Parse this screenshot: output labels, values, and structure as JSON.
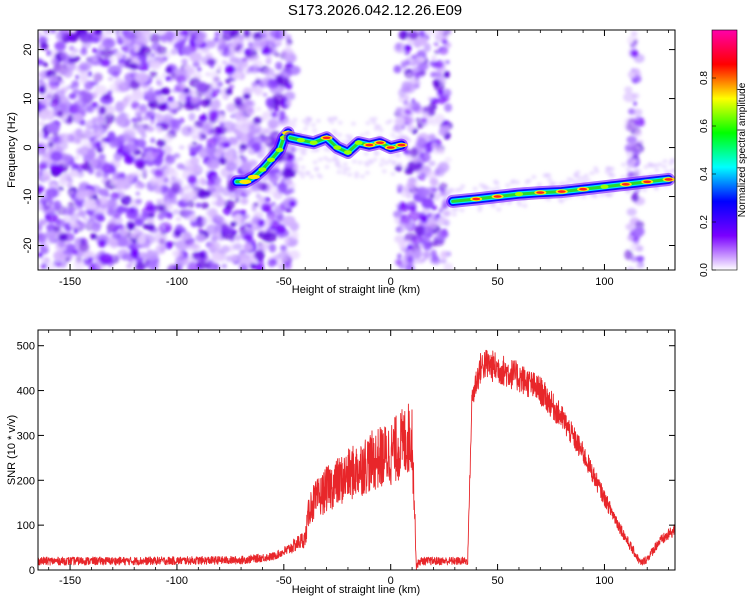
{
  "title": "S173.2026.042.12.26.E09",
  "chart_data": [
    {
      "type": "heatmap",
      "name": "spectrogram",
      "xlabel": "Height of straight line (km)",
      "ylabel": "Frequency (Hz)",
      "xlim": [
        -165,
        133
      ],
      "ylim": [
        -25,
        24
      ],
      "xticks": [
        -150,
        -100,
        -50,
        0,
        50,
        100
      ],
      "xtick_labels": [
        "-150",
        "-100",
        "-50",
        "0",
        "50",
        "100"
      ],
      "yticks": [
        -20,
        -10,
        0,
        10,
        20
      ],
      "ytick_labels": [
        "-20",
        "-10",
        "0",
        "10",
        "20"
      ],
      "colorbar": {
        "label": "Normalized spectral amplitude",
        "range": [
          0,
          1
        ],
        "ticks": [
          0,
          0.2,
          0.4,
          0.6,
          0.8
        ],
        "tick_labels": [
          "0.0",
          "0.2",
          "0.4",
          "0.6",
          "0.8"
        ],
        "colors": [
          "#ffffff",
          "#7a00ff",
          "#0000ff",
          "#00ffff",
          "#00ff00",
          "#ffff00",
          "#ff0000",
          "#ff00aa"
        ]
      },
      "noise_regions": [
        [
          -165,
          -45
        ],
        [
          3,
          27
        ],
        [
          111,
          117
        ]
      ],
      "tracks": [
        {
          "x": [
            -72,
            -68,
            -64,
            -60,
            -56,
            -52,
            -50,
            -48
          ],
          "y": [
            -7,
            -7,
            -6,
            -4.5,
            -2.5,
            -0.5,
            2,
            3
          ]
        },
        {
          "x": [
            -47,
            -42,
            -36,
            -30,
            -25,
            -20,
            -15,
            -10,
            -5,
            0,
            5
          ],
          "y": [
            2,
            1.5,
            1,
            2,
            0,
            -1,
            1,
            0.5,
            1,
            0,
            0.5
          ]
        },
        {
          "x": [
            29,
            40,
            50,
            60,
            70,
            80,
            90,
            100,
            110,
            120,
            130
          ],
          "y": [
            -11,
            -10.5,
            -10,
            -9.5,
            -9.2,
            -9,
            -8.5,
            -8,
            -7.5,
            -7,
            -6.5
          ]
        }
      ]
    },
    {
      "type": "line",
      "name": "snr",
      "xlabel": "Height of straight line (km)",
      "ylabel": "SNR (10 * v/v)",
      "xlim": [
        -165,
        133
      ],
      "ylim": [
        0,
        535
      ],
      "xticks": [
        -150,
        -100,
        -50,
        0,
        50,
        100
      ],
      "xtick_labels": [
        "-150",
        "-100",
        "-50",
        "0",
        "50",
        "100"
      ],
      "yticks": [
        0,
        100,
        200,
        300,
        400,
        500
      ],
      "ytick_labels": [
        "0",
        "100",
        "200",
        "300",
        "400",
        "500"
      ],
      "color": "#e8262a",
      "series": [
        {
          "name": "SNR",
          "x": [
            -165,
            -120,
            -70,
            -55,
            -48,
            -42,
            -40,
            -38,
            -30,
            -20,
            -10,
            0,
            5,
            10,
            12,
            14,
            20,
            30,
            36,
            38,
            40,
            42,
            44,
            50,
            60,
            70,
            80,
            90,
            100,
            110,
            117,
            120,
            125,
            133
          ],
          "y": [
            20,
            20,
            22,
            30,
            45,
            65,
            70,
            140,
            180,
            210,
            240,
            260,
            280,
            300,
            10,
            20,
            20,
            20,
            20,
            380,
            420,
            450,
            460,
            450,
            430,
            400,
            340,
            260,
            160,
            70,
            15,
            25,
            60,
            90
          ]
        }
      ]
    }
  ]
}
